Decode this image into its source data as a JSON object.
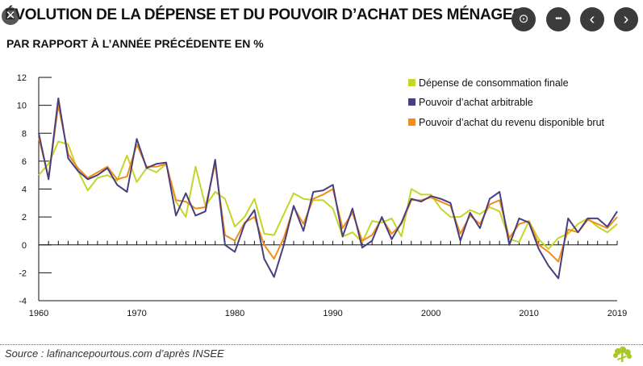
{
  "chart_data": {
    "type": "line",
    "title": "ÉVOLUTION DE LA DÉPENSE ET DU POUVOIR D’ACHAT DES MÉNAGES",
    "subtitle": "PAR RAPPORT À L’ANNÉE PRÉCÉDENTE EN %",
    "xlabel": "",
    "ylabel": "",
    "x": [
      1960,
      1961,
      1962,
      1963,
      1964,
      1965,
      1966,
      1967,
      1968,
      1969,
      1970,
      1971,
      1972,
      1973,
      1974,
      1975,
      1976,
      1977,
      1978,
      1979,
      1980,
      1981,
      1982,
      1983,
      1984,
      1985,
      1986,
      1987,
      1988,
      1989,
      1990,
      1991,
      1992,
      1993,
      1994,
      1995,
      1996,
      1997,
      1998,
      1999,
      2000,
      2001,
      2002,
      2003,
      2004,
      2005,
      2006,
      2007,
      2008,
      2009,
      2010,
      2011,
      2012,
      2013,
      2014,
      2015,
      2016,
      2017,
      2018,
      2019
    ],
    "xlim": [
      1960,
      2019
    ],
    "ylim": [
      -4,
      12
    ],
    "x_tick_labels": [
      "1960",
      "1970",
      "1980",
      "1990",
      "2000",
      "2010",
      "2019"
    ],
    "y_tick_labels": [
      "12",
      "10",
      "8",
      "6",
      "4",
      "2",
      "0",
      "-2",
      "-4"
    ],
    "y_ticks": [
      12,
      10,
      8,
      6,
      4,
      2,
      0,
      -2,
      -4
    ],
    "x_tick_values": [
      1960,
      1970,
      1980,
      1990,
      2000,
      2010,
      2019
    ],
    "legend_position": "top-right",
    "series": [
      {
        "name": "Dépense de consommation finale",
        "color": "#c5d52a",
        "values": [
          5.0,
          5.8,
          7.4,
          7.2,
          5.3,
          3.9,
          4.8,
          5.0,
          4.6,
          6.4,
          4.5,
          5.5,
          5.2,
          5.8,
          3.1,
          2.0,
          5.6,
          2.8,
          3.8,
          3.3,
          1.3,
          2.0,
          3.3,
          0.8,
          0.7,
          2.2,
          3.7,
          3.3,
          3.2,
          3.2,
          2.6,
          0.6,
          0.9,
          0.2,
          1.7,
          1.6,
          1.9,
          0.6,
          4.0,
          3.6,
          3.6,
          2.6,
          2.0,
          2.0,
          2.5,
          2.2,
          2.7,
          2.4,
          0.4,
          0.2,
          1.7,
          0.4,
          -0.3,
          0.5,
          0.8,
          1.5,
          1.9,
          1.3,
          0.9,
          1.5
        ]
      },
      {
        "name": "Pouvoir d’achat arbitrable",
        "color": "#4a3f7e",
        "values": [
          8.0,
          4.7,
          10.5,
          6.2,
          5.3,
          4.7,
          5.0,
          5.5,
          4.3,
          3.8,
          7.6,
          5.5,
          5.8,
          5.9,
          2.1,
          3.7,
          2.1,
          2.4,
          6.1,
          0.0,
          -0.5,
          1.5,
          2.5,
          -1.0,
          -2.3,
          0.0,
          2.8,
          1.0,
          3.8,
          3.9,
          4.3,
          0.6,
          2.6,
          -0.2,
          0.3,
          2.0,
          0.4,
          1.6,
          3.3,
          3.1,
          3.5,
          3.3,
          3.0,
          0.3,
          2.3,
          1.2,
          3.3,
          3.8,
          0.0,
          1.9,
          1.6,
          -0.3,
          -1.5,
          -2.4,
          1.9,
          0.9,
          1.9,
          1.9,
          1.3,
          2.4
        ]
      },
      {
        "name": "Pouvoir d’achat du revenu disponible brut",
        "color": "#f28d1a",
        "values": [
          7.7,
          4.8,
          10.0,
          6.5,
          5.5,
          4.8,
          5.2,
          5.6,
          4.7,
          4.9,
          7.2,
          5.6,
          5.6,
          5.8,
          3.2,
          3.1,
          2.6,
          2.7,
          5.8,
          0.7,
          0.3,
          1.6,
          2.0,
          0.0,
          -1.0,
          0.5,
          2.7,
          1.5,
          3.3,
          3.6,
          4.0,
          1.2,
          2.3,
          0.3,
          0.7,
          1.9,
          0.8,
          1.5,
          3.2,
          3.2,
          3.4,
          3.1,
          2.8,
          0.8,
          2.1,
          1.5,
          2.9,
          3.2,
          0.5,
          1.5,
          1.7,
          0.0,
          -0.5,
          -1.2,
          1.1,
          0.9,
          1.8,
          1.5,
          1.2,
          2.0
        ]
      }
    ]
  },
  "source": "Source : lafinancepourtous.com d’après INSEE",
  "controls": {
    "close": "✕",
    "scan": "⊙",
    "more": "•••",
    "prev": "‹",
    "next": "›"
  },
  "logo_icon": "tree-logo-icon"
}
